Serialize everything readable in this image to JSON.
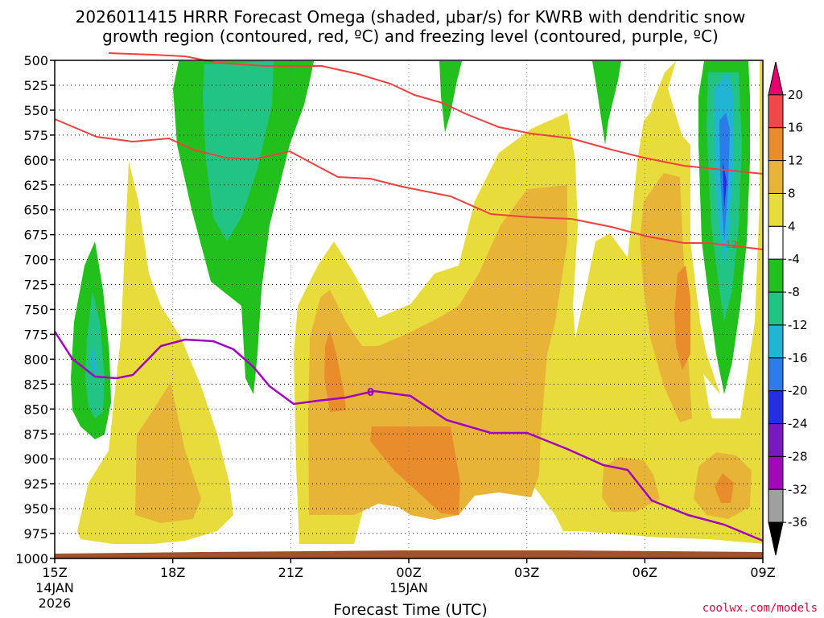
{
  "chart_data": {
    "type": "contour-time-height",
    "title_line1": "2026011415 HRRR Forecast Omega (shaded, μbar/s) for KWRB with dendritic snow",
    "title_line2": "growth region (contoured, red, ºC) and freezing level (contoured, purple, ºC)",
    "xlabel": "Forecast Time (UTC)",
    "y_ticks": [
      "500",
      "525",
      "550",
      "575",
      "600",
      "625",
      "650",
      "675",
      "700",
      "725",
      "750",
      "775",
      "800",
      "825",
      "850",
      "875",
      "900",
      "925",
      "950",
      "975",
      "1000"
    ],
    "x_ticks": [
      {
        "time": "15Z",
        "sub1": "14JAN",
        "sub2": "2026"
      },
      {
        "time": "18Z",
        "sub1": "",
        "sub2": ""
      },
      {
        "time": "21Z",
        "sub1": "",
        "sub2": ""
      },
      {
        "time": "00Z",
        "sub1": "15JAN",
        "sub2": ""
      },
      {
        "time": "03Z",
        "sub1": "",
        "sub2": ""
      },
      {
        "time": "06Z",
        "sub1": "",
        "sub2": ""
      },
      {
        "time": "09Z",
        "sub1": "",
        "sub2": ""
      }
    ],
    "colorbar": {
      "labels": [
        "20",
        "16",
        "12",
        "8",
        "4",
        "-4",
        "-8",
        "-12",
        "-16",
        "-20",
        "-24",
        "-28",
        "-32",
        "-36"
      ],
      "colors": [
        "#e80070",
        "#f04848",
        "#e88c2c",
        "#e8b438",
        "#e8dc3c",
        "#ffffff",
        "#22c01c",
        "#22c484",
        "#22b4d4",
        "#2c7ce8",
        "#2430e0",
        "#7a18c0",
        "#a008b8",
        "#a0a0a0",
        "#000000"
      ]
    },
    "red_isotherm_label": "-12",
    "purple_isotherm_label": "0",
    "credit": "coolwx.com/models"
  }
}
